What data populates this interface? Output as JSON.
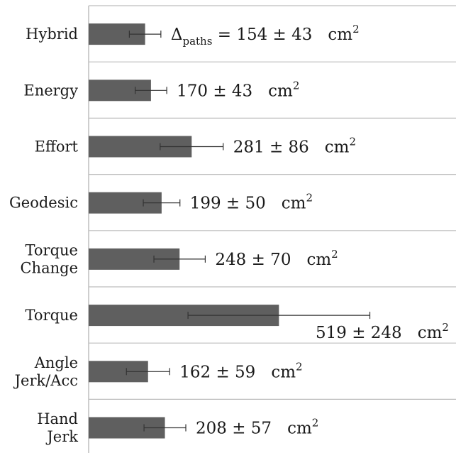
{
  "chart_data": {
    "type": "bar",
    "orientation": "horizontal",
    "categories": [
      [
        "Hybrid"
      ],
      [
        "Energy"
      ],
      [
        "Effort"
      ],
      [
        "Geodesic"
      ],
      [
        "Torque",
        "Change"
      ],
      [
        "Torque"
      ],
      [
        "Angle",
        "Jerk/Acc"
      ],
      [
        "Hand",
        "Jerk"
      ]
    ],
    "values": [
      154,
      170,
      281,
      199,
      248,
      519,
      162,
      208
    ],
    "errors": [
      43,
      43,
      86,
      50,
      70,
      248,
      59,
      57
    ],
    "labels": [
      {
        "prefix": "Δ",
        "sub": "paths",
        "eq": " = ",
        "text": "154 ± 43",
        "unit": "cm",
        "sup": "2"
      },
      {
        "prefix": "",
        "sub": "",
        "eq": "",
        "text": "170 ± 43",
        "unit": "cm",
        "sup": "2"
      },
      {
        "prefix": "",
        "sub": "",
        "eq": "",
        "text": "281 ± 86",
        "unit": "cm",
        "sup": "2"
      },
      {
        "prefix": "",
        "sub": "",
        "eq": "",
        "text": "199 ± 50",
        "unit": "cm",
        "sup": "2"
      },
      {
        "prefix": "",
        "sub": "",
        "eq": "",
        "text": "248 ± 70",
        "unit": "cm",
        "sup": "2"
      },
      {
        "prefix": "",
        "sub": "",
        "eq": "",
        "text": "519 ± 248",
        "unit": "cm",
        "sup": "2"
      },
      {
        "prefix": "",
        "sub": "",
        "eq": "",
        "text": "162 ± 59",
        "unit": "cm",
        "sup": "2"
      },
      {
        "prefix": "",
        "sub": "",
        "eq": "",
        "text": "208 ± 57",
        "unit": "cm",
        "sup": "2"
      }
    ],
    "xlim": [
      0,
      660
    ],
    "title": "",
    "xlabel": "",
    "ylabel": "",
    "grid": "horizontal separators",
    "legend": "none",
    "bar_color": "#5f5f5f",
    "line_color": "#bdbdbd",
    "error_color": "#333333"
  }
}
